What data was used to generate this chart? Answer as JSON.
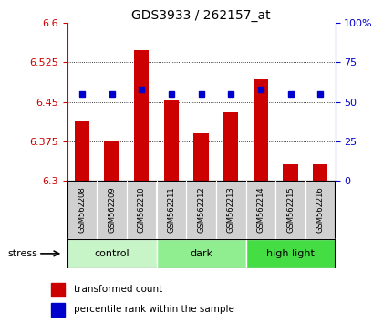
{
  "title": "GDS3933 / 262157_at",
  "samples": [
    "GSM562208",
    "GSM562209",
    "GSM562210",
    "GSM562211",
    "GSM562212",
    "GSM562213",
    "GSM562214",
    "GSM562215",
    "GSM562216"
  ],
  "red_values": [
    6.413,
    6.375,
    6.548,
    6.452,
    6.39,
    6.43,
    6.492,
    6.332,
    6.332
  ],
  "blue_values": [
    55,
    55,
    58,
    55,
    55,
    55,
    58,
    55,
    55
  ],
  "ylim_left": [
    6.3,
    6.6
  ],
  "ylim_right": [
    0,
    100
  ],
  "yticks_left": [
    6.3,
    6.375,
    6.45,
    6.525,
    6.6
  ],
  "yticks_right": [
    0,
    25,
    50,
    75,
    100
  ],
  "groups": [
    {
      "label": "control",
      "start": 0,
      "end": 3,
      "color": "#c8f5c8"
    },
    {
      "label": "dark",
      "start": 3,
      "end": 6,
      "color": "#90ee90"
    },
    {
      "label": "high light",
      "start": 6,
      "end": 9,
      "color": "#44dd44"
    }
  ],
  "stress_label": "stress",
  "bar_color": "#cc0000",
  "dot_color": "#0000cc",
  "left_tick_color": "#cc0000",
  "right_tick_color": "#0000cc",
  "gridline_color": "#000000",
  "legend_red_label": "transformed count",
  "legend_blue_label": "percentile rank within the sample",
  "label_box_color": "#d0d0d0",
  "bar_width": 0.5
}
